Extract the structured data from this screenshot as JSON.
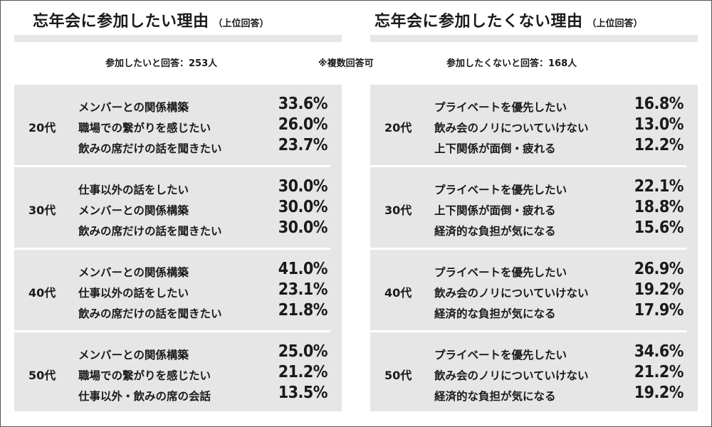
{
  "chart_data": [
    {
      "type": "table",
      "title": "忘年会に参加したい理由",
      "subtitle": "（上位回答）",
      "respondents": "参加したいと回答：253人",
      "groups": [
        {
          "age": "20代",
          "rows": [
            {
              "reason": "メンバーとの関係構築",
              "value": "33.6%"
            },
            {
              "reason": "職場での繋がりを感じたい",
              "value": "26.0%"
            },
            {
              "reason": "飲みの席だけの話を聞きたい",
              "value": "23.7%"
            }
          ]
        },
        {
          "age": "30代",
          "rows": [
            {
              "reason": "仕事以外の話をしたい",
              "value": "30.0%"
            },
            {
              "reason": "メンバーとの関係構築",
              "value": "30.0%"
            },
            {
              "reason": "飲みの席だけの話を聞きたい",
              "value": "30.0%"
            }
          ]
        },
        {
          "age": "40代",
          "rows": [
            {
              "reason": "メンバーとの関係構築",
              "value": "41.0%"
            },
            {
              "reason": "仕事以外の話をしたい",
              "value": "23.1%"
            },
            {
              "reason": "飲みの席だけの話を聞きたい",
              "value": "21.8%"
            }
          ]
        },
        {
          "age": "50代",
          "rows": [
            {
              "reason": "メンバーとの関係構築",
              "value": "25.0%"
            },
            {
              "reason": "職場での繋がりを感じたい",
              "value": "21.2%"
            },
            {
              "reason": "仕事以外・飲みの席の会話",
              "value": "13.5%"
            }
          ]
        }
      ]
    },
    {
      "type": "table",
      "title": "忘年会に参加したくない理由",
      "subtitle": "（上位回答）",
      "respondents": "参加したくないと回答：168人",
      "groups": [
        {
          "age": "20代",
          "rows": [
            {
              "reason": "プライベートを優先したい",
              "value": "16.8%"
            },
            {
              "reason": "飲み会のノリについていけない",
              "value": "13.0%"
            },
            {
              "reason": "上下関係が面倒・疲れる",
              "value": "12.2%"
            }
          ]
        },
        {
          "age": "30代",
          "rows": [
            {
              "reason": "プライベートを優先したい",
              "value": "22.1%"
            },
            {
              "reason": "上下関係が面倒・疲れる",
              "value": "18.8%"
            },
            {
              "reason": "経済的な負担が気になる",
              "value": "15.6%"
            }
          ]
        },
        {
          "age": "40代",
          "rows": [
            {
              "reason": "プライベートを優先したい",
              "value": "26.9%"
            },
            {
              "reason": "飲み会のノリについていけない",
              "value": "19.2%"
            },
            {
              "reason": "経済的な負担が気になる",
              "value": "17.9%"
            }
          ]
        },
        {
          "age": "50代",
          "rows": [
            {
              "reason": "プライベートを優先したい",
              "value": "34.6%"
            },
            {
              "reason": "飲み会のノリについていけない",
              "value": "21.2%"
            },
            {
              "reason": "経済的な負担が気になる",
              "value": "19.2%"
            }
          ]
        }
      ]
    }
  ],
  "note": "※複数回答可",
  "colors": {
    "panel_bg": "#e6e6e6",
    "heading_underline": "#e6e6e6",
    "divider": "#ffffff",
    "text": "#1a1a1a",
    "frame": "#555555"
  }
}
